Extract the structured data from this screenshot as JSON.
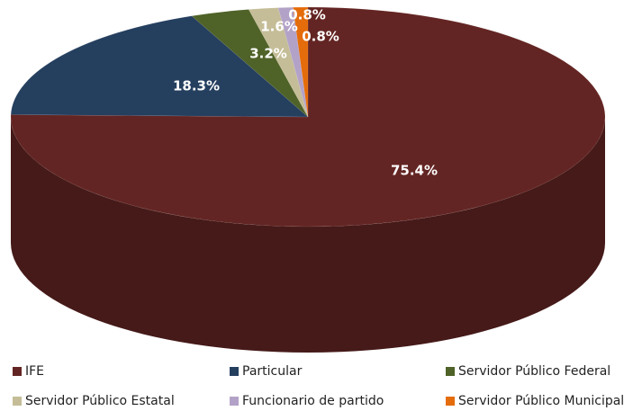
{
  "chart_data": {
    "type": "pie3d",
    "categories": [
      "IFE",
      "Particular",
      "Servidor Público Federal",
      "Servidor Público Estatal",
      "Funcionario de partido",
      "Servidor Público Municipal"
    ],
    "values": [
      75.4,
      18.3,
      3.2,
      1.6,
      0.8,
      0.8
    ],
    "value_labels": [
      "75.4%",
      "18.3%",
      "3.2%",
      "1.6%",
      "0.8%",
      "0.8%"
    ],
    "colors": [
      "#632523",
      "#253f5f",
      "#4f6228",
      "#c4bd97",
      "#b3a2c7",
      "#e46c0a"
    ],
    "legend": "bottom"
  }
}
